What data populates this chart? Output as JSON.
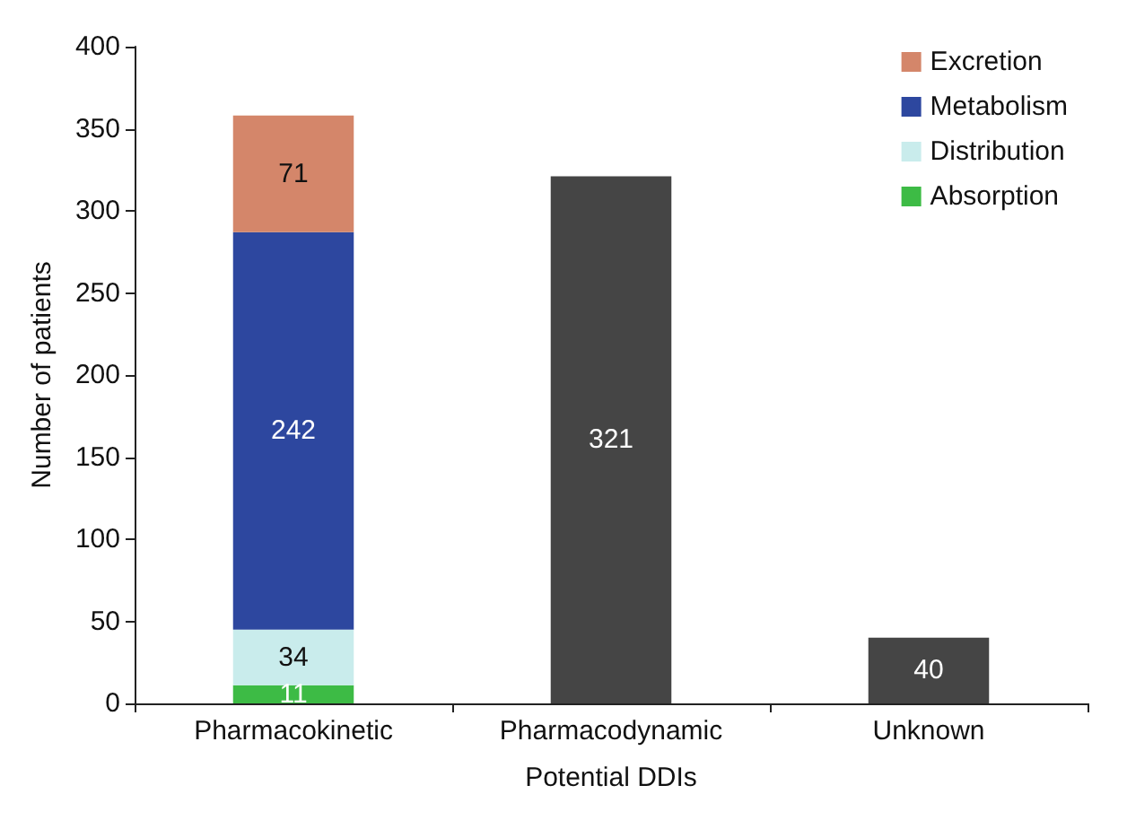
{
  "chart_data": {
    "type": "bar",
    "xlabel": "Potential DDIs",
    "ylabel": "Number of patients",
    "categories": [
      "Pharmacokinetic",
      "Pharmacodynamic",
      "Unknown"
    ],
    "stacked": true,
    "data_labels": true,
    "legend": "top right",
    "ylim": [
      0,
      400
    ],
    "yticks": [
      0,
      50,
      100,
      150,
      200,
      250,
      300,
      350,
      400
    ],
    "series": [
      {
        "name": "Absorption",
        "color": "#3dbb45",
        "values": [
          11,
          null,
          null
        ]
      },
      {
        "name": "Distribution",
        "color": "#c9ecec",
        "values": [
          34,
          null,
          null
        ]
      },
      {
        "name": "Metabolism",
        "color": "#2d479f",
        "values": [
          242,
          null,
          null
        ]
      },
      {
        "name": "Excretion",
        "color": "#d4866a",
        "values": [
          71,
          null,
          null
        ]
      },
      {
        "color": "#454545",
        "values": [
          null,
          321,
          40
        ]
      }
    ]
  }
}
